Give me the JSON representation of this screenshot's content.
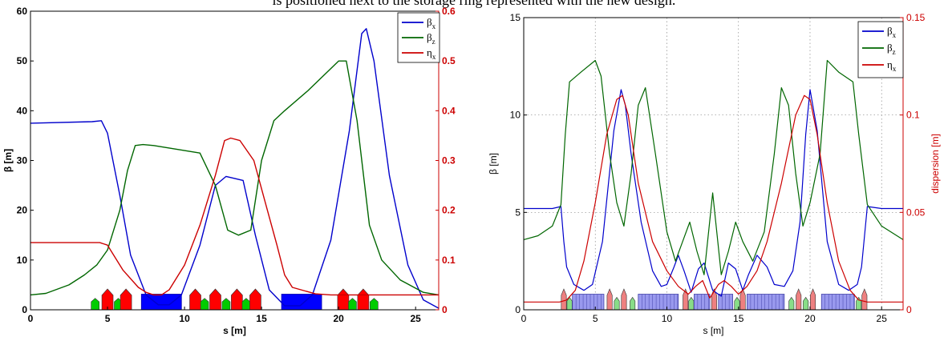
{
  "caption": "is positioned next to the storage ring represented with the new design.",
  "colors": {
    "beta_x": "#0000cc",
    "beta_z": "#006600",
    "eta_x": "#cc0000",
    "dipole": "#0000ff",
    "quad_focus": "#ff0000",
    "quad_defocus": "#00cc00",
    "magnet_light": "#9999ee",
    "magnet_red_light": "#ee8080",
    "magnet_green_light": "#88dd88",
    "right_axis": "#cc0000"
  },
  "chart_data": [
    {
      "type": "line",
      "title": "",
      "xlabel": "s [m]",
      "ylabel": "β [m]",
      "y2label": "",
      "xlim": [
        0,
        26.5
      ],
      "ylim": [
        0,
        60
      ],
      "y2lim": [
        0,
        0.6
      ],
      "xticks": [
        "0",
        "5",
        "10",
        "15",
        "20",
        "25"
      ],
      "yticks": [
        "0",
        "10",
        "20",
        "30",
        "40",
        "50",
        "60"
      ],
      "y2ticks": [
        "0",
        "0.1",
        "0.2",
        "0.3",
        "0.4",
        "0.5",
        "0.6"
      ],
      "grid": false,
      "legend_position": "top-right",
      "series": [
        {
          "name": "βx",
          "axis": "left",
          "x": [
            0,
            4,
            4.6,
            5,
            5.8,
            6.5,
            7.5,
            8.3,
            9,
            9.8,
            11,
            12,
            12.7,
            13.8,
            14.6,
            15.5,
            16.5,
            17.5,
            18.3,
            19.5,
            20.7,
            21.5,
            21.8,
            22.3,
            23.3,
            24.5,
            25.5,
            26.5
          ],
          "y": [
            37.5,
            37.8,
            38,
            35.5,
            23,
            11,
            3,
            1,
            1,
            3,
            13,
            25,
            26.8,
            26,
            15,
            4,
            0.8,
            0.8,
            3,
            14,
            36,
            55.5,
            56.5,
            50,
            27,
            9,
            2,
            0.3
          ]
        },
        {
          "name": "βz",
          "axis": "left",
          "x": [
            0,
            1,
            2.5,
            3.5,
            4.3,
            5,
            5.8,
            6.3,
            6.8,
            7.3,
            8,
            10,
            11,
            12,
            12.8,
            13.5,
            14.3,
            15,
            15.8,
            16.5,
            18,
            20,
            20.5,
            21.2,
            22,
            22.8,
            24,
            25.5,
            26.5
          ],
          "y": [
            3,
            3.3,
            5,
            7,
            9,
            12,
            20,
            28,
            33,
            33.2,
            33,
            32,
            31.5,
            25,
            16,
            15,
            16,
            30,
            38,
            40,
            44,
            50,
            50,
            38,
            17,
            10,
            6,
            3.5,
            3
          ]
        },
        {
          "name": "ηx",
          "axis": "right",
          "x": [
            0,
            4.5,
            5,
            6,
            7,
            7.5,
            8,
            8.5,
            9,
            10,
            11,
            12,
            12.6,
            13,
            13.6,
            14.5,
            15.2,
            16,
            16.5,
            17,
            18.5,
            19.5,
            20.5,
            21.5,
            22.5,
            24,
            25,
            26.5
          ],
          "y": [
            0.135,
            0.135,
            0.13,
            0.08,
            0.045,
            0.035,
            0.03,
            0.03,
            0.04,
            0.09,
            0.17,
            0.27,
            0.34,
            0.345,
            0.34,
            0.3,
            0.22,
            0.13,
            0.07,
            0.045,
            0.032,
            0.03,
            0.03,
            0.03,
            0.03,
            0.03,
            0.03,
            0.03
          ]
        }
      ],
      "magnets": [
        {
          "kind": "quad_defocus",
          "s": 4.2
        },
        {
          "kind": "quad_focus",
          "s": 5.0
        },
        {
          "kind": "quad_defocus",
          "s": 5.7
        },
        {
          "kind": "quad_focus",
          "s": 6.2
        },
        {
          "kind": "dipole",
          "s_start": 7.2,
          "s_end": 9.8
        },
        {
          "kind": "quad_focus",
          "s": 10.7
        },
        {
          "kind": "quad_defocus",
          "s": 11.3
        },
        {
          "kind": "quad_focus",
          "s": 12.0
        },
        {
          "kind": "quad_defocus",
          "s": 12.7
        },
        {
          "kind": "quad_focus",
          "s": 13.4
        },
        {
          "kind": "quad_defocus",
          "s": 14.0
        },
        {
          "kind": "quad_focus",
          "s": 14.6
        },
        {
          "kind": "dipole",
          "s_start": 16.3,
          "s_end": 18.9
        },
        {
          "kind": "quad_focus",
          "s": 20.3
        },
        {
          "kind": "quad_defocus",
          "s": 20.9
        },
        {
          "kind": "quad_focus",
          "s": 21.6
        },
        {
          "kind": "quad_defocus",
          "s": 22.3
        }
      ]
    },
    {
      "type": "line",
      "title": "",
      "xlabel": "s [m]",
      "ylabel": "β [m]",
      "y2label": "dispersion [m]",
      "xlim": [
        0,
        26.5
      ],
      "ylim": [
        0,
        15
      ],
      "y2lim": [
        0,
        0.15
      ],
      "xticks": [
        "0",
        "5",
        "10",
        "15",
        "20",
        "25"
      ],
      "yticks": [
        "0",
        "5",
        "10",
        "15"
      ],
      "y2ticks": [
        "0",
        "0.05",
        "0.1",
        "0.15"
      ],
      "grid": true,
      "legend_position": "top-right",
      "series": [
        {
          "name": "βx",
          "axis": "left",
          "x": [
            0,
            1,
            2,
            2.6,
            2.8,
            3.0,
            3.5,
            4.2,
            4.8,
            5.5,
            6.3,
            6.8,
            7.1,
            7.5,
            8.2,
            9,
            9.6,
            10,
            10.5,
            10.8,
            11.2,
            11.7,
            12.2,
            12.6,
            13.2,
            13.8,
            14.3,
            14.8,
            15.3,
            15.7,
            16.3,
            17,
            17.5,
            18.2,
            18.8,
            19.3,
            19.7,
            20,
            20.5,
            21.2,
            22,
            22.7,
            23.3,
            23.6,
            24,
            25,
            26.5
          ],
          "y": [
            5.2,
            5.2,
            5.2,
            5.3,
            3.5,
            2.2,
            1.3,
            1.0,
            1.3,
            3.5,
            9.2,
            11.3,
            10.5,
            8,
            4.5,
            2,
            1.2,
            1.3,
            2.2,
            2.8,
            2.0,
            0.9,
            2.1,
            2.4,
            1.0,
            0.7,
            2.4,
            2.1,
            1.0,
            1.8,
            2.8,
            2.2,
            1.3,
            1.2,
            2.0,
            4.5,
            9,
            11.3,
            9.2,
            3.5,
            1.3,
            1.0,
            1.3,
            2.2,
            5.3,
            5.2,
            5.2
          ]
        },
        {
          "name": "βz",
          "axis": "left",
          "x": [
            0,
            1,
            2,
            2.6,
            2.9,
            3.2,
            4,
            5,
            5.4,
            6,
            6.5,
            7,
            7.5,
            8.0,
            8.5,
            9.2,
            10,
            10.6,
            11.1,
            11.6,
            12.1,
            12.6,
            13.2,
            13.8,
            14.3,
            14.8,
            15.3,
            16,
            16.8,
            17.5,
            18.0,
            18.5,
            19,
            19.5,
            20,
            20.7,
            21.2,
            22,
            23,
            23.4,
            24,
            25,
            26.5
          ],
          "y": [
            3.6,
            3.8,
            4.3,
            5.4,
            9,
            11.7,
            12.2,
            12.8,
            12.0,
            8,
            5.5,
            4.3,
            7,
            10.5,
            11.4,
            8,
            4,
            2.5,
            3.5,
            4.5,
            3.0,
            1.8,
            6.0,
            1.8,
            3.0,
            4.5,
            3.5,
            2.5,
            4,
            8,
            11.4,
            10.5,
            7,
            4.3,
            5.5,
            8,
            12.8,
            12.2,
            11.7,
            9,
            5.4,
            4.3,
            3.6
          ]
        },
        {
          "name": "ηx",
          "axis": "right",
          "x": [
            0,
            2.5,
            3.0,
            3.6,
            4.2,
            5,
            5.8,
            6.5,
            6.9,
            7.3,
            8,
            9,
            10,
            10.8,
            11.5,
            12,
            12.5,
            13,
            13.6,
            14,
            14.5,
            15,
            15.6,
            16.3,
            17,
            18,
            19,
            19.6,
            20,
            20.5,
            21.2,
            22,
            22.8,
            23.4,
            24,
            26.5
          ],
          "y": [
            0.004,
            0.004,
            0.005,
            0.01,
            0.025,
            0.055,
            0.09,
            0.108,
            0.11,
            0.1,
            0.065,
            0.035,
            0.02,
            0.012,
            0.008,
            0.012,
            0.015,
            0.006,
            0.013,
            0.015,
            0.012,
            0.008,
            0.012,
            0.02,
            0.035,
            0.065,
            0.1,
            0.11,
            0.108,
            0.09,
            0.055,
            0.025,
            0.01,
            0.005,
            0.004,
            0.004
          ]
        }
      ],
      "magnets": [
        {
          "kind": "quad_red",
          "s": 2.8
        },
        {
          "kind": "quad_green",
          "s": 3.2
        },
        {
          "kind": "dipole",
          "s_start": 3.4,
          "s_end": 5.6
        },
        {
          "kind": "quad_red",
          "s": 6.0
        },
        {
          "kind": "quad_green",
          "s": 6.5
        },
        {
          "kind": "quad_red",
          "s": 7.0
        },
        {
          "kind": "quad_green",
          "s": 7.6
        },
        {
          "kind": "dipole",
          "s_start": 8.0,
          "s_end": 10.8
        },
        {
          "kind": "quad_red",
          "s": 11.3
        },
        {
          "kind": "quad_green",
          "s": 11.7
        },
        {
          "kind": "dipole",
          "s_start": 11.9,
          "s_end": 13.0
        },
        {
          "kind": "quad_red",
          "s": 13.3
        },
        {
          "kind": "dipole",
          "s_start": 13.6,
          "s_end": 14.6
        },
        {
          "kind": "quad_green",
          "s": 14.9
        },
        {
          "kind": "quad_red",
          "s": 15.3
        },
        {
          "kind": "dipole",
          "s_start": 15.6,
          "s_end": 18.2
        },
        {
          "kind": "quad_green",
          "s": 18.7
        },
        {
          "kind": "quad_red",
          "s": 19.2
        },
        {
          "kind": "quad_green",
          "s": 19.7
        },
        {
          "kind": "quad_red",
          "s": 20.2
        },
        {
          "kind": "dipole",
          "s_start": 20.8,
          "s_end": 23.1
        },
        {
          "kind": "quad_green",
          "s": 23.4
        },
        {
          "kind": "quad_red",
          "s": 23.8
        }
      ]
    }
  ]
}
